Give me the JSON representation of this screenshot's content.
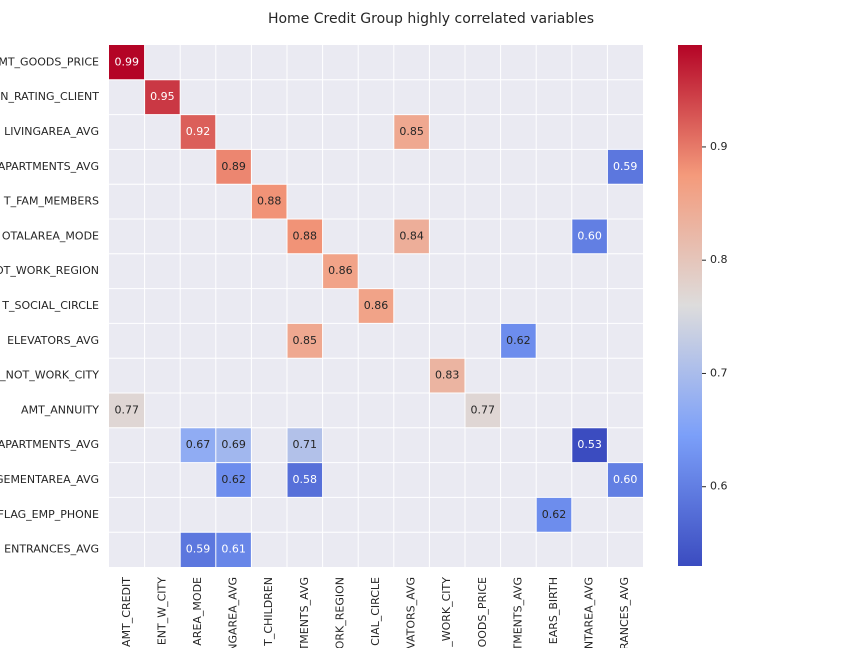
{
  "chart_data": {
    "type": "heatmap",
    "title": "Home Credit Group highly correlated variables",
    "rows": [
      "MT_GOODS_PRICE",
      "N_RATING_CLIENT",
      "LIVINGAREA_AVG",
      "APARTMENTS_AVG",
      "T_FAM_MEMBERS",
      "OTALAREA_MODE",
      "OT_WORK_REGION",
      "T_SOCIAL_CIRCLE",
      "ELEVATORS_AVG",
      "_NOT_WORK_CITY",
      "AMT_ANNUITY",
      "APARTMENTS_AVG",
      "GEMENTAREA_AVG",
      "FLAG_EMP_PHONE",
      "ENTRANCES_AVG"
    ],
    "columns": [
      "AMT_CREDIT",
      "ENT_W_CITY",
      "AREA_MODE",
      "INGAREA_AVG",
      "T_CHILDREN",
      "TMENTS_AVG",
      "ORK_REGION",
      "CIAL_CIRCLE",
      "VATORS_AVG",
      "_WORK_CITY",
      "GOODS_PRICE",
      "TMENTS_AVG",
      "EARS_BIRTH",
      "NTAREA_AVG",
      "RANCES_AVG"
    ],
    "values": [
      [
        0.99,
        null,
        null,
        null,
        null,
        null,
        null,
        null,
        null,
        null,
        null,
        null,
        null,
        null,
        null
      ],
      [
        null,
        0.95,
        null,
        null,
        null,
        null,
        null,
        null,
        null,
        null,
        null,
        null,
        null,
        null,
        null
      ],
      [
        null,
        null,
        0.92,
        null,
        null,
        null,
        null,
        null,
        0.85,
        null,
        null,
        null,
        null,
        null,
        null
      ],
      [
        null,
        null,
        null,
        0.89,
        null,
        null,
        null,
        null,
        null,
        null,
        null,
        null,
        null,
        null,
        0.59
      ],
      [
        null,
        null,
        null,
        null,
        0.88,
        null,
        null,
        null,
        null,
        null,
        null,
        null,
        null,
        null,
        null
      ],
      [
        null,
        null,
        null,
        null,
        null,
        0.88,
        null,
        null,
        0.84,
        null,
        null,
        null,
        null,
        0.6,
        null
      ],
      [
        null,
        null,
        null,
        null,
        null,
        null,
        0.86,
        null,
        null,
        null,
        null,
        null,
        null,
        null,
        null
      ],
      [
        null,
        null,
        null,
        null,
        null,
        null,
        null,
        0.86,
        null,
        null,
        null,
        null,
        null,
        null,
        null
      ],
      [
        null,
        null,
        null,
        null,
        null,
        0.85,
        null,
        null,
        null,
        null,
        null,
        0.62,
        null,
        null,
        null
      ],
      [
        null,
        null,
        null,
        null,
        null,
        null,
        null,
        null,
        null,
        0.83,
        null,
        null,
        null,
        null,
        null
      ],
      [
        0.77,
        null,
        null,
        null,
        null,
        null,
        null,
        null,
        null,
        null,
        0.77,
        null,
        null,
        null,
        null
      ],
      [
        null,
        null,
        0.67,
        0.69,
        null,
        0.71,
        null,
        null,
        null,
        null,
        null,
        null,
        null,
        0.53,
        null
      ],
      [
        null,
        null,
        null,
        0.62,
        null,
        0.58,
        null,
        null,
        null,
        null,
        null,
        null,
        null,
        null,
        0.6
      ],
      [
        null,
        null,
        null,
        null,
        null,
        null,
        null,
        null,
        null,
        null,
        null,
        null,
        0.62,
        null,
        null
      ],
      [
        null,
        null,
        0.59,
        0.61,
        null,
        null,
        null,
        null,
        null,
        null,
        null,
        null,
        null,
        null,
        null
      ]
    ],
    "value_labels": [
      [
        "0.99",
        null,
        null,
        null,
        null,
        null,
        null,
        null,
        null,
        null,
        null,
        null,
        null,
        null,
        null
      ],
      [
        null,
        "0.95",
        null,
        null,
        null,
        null,
        null,
        null,
        null,
        null,
        null,
        null,
        null,
        null,
        null
      ],
      [
        null,
        null,
        "0.92",
        null,
        null,
        null,
        null,
        null,
        "0.85",
        null,
        null,
        null,
        null,
        null,
        null
      ],
      [
        null,
        null,
        null,
        "0.89",
        null,
        null,
        null,
        null,
        null,
        null,
        null,
        null,
        null,
        null,
        "0.59"
      ],
      [
        null,
        null,
        null,
        null,
        "0.88",
        null,
        null,
        null,
        null,
        null,
        null,
        null,
        null,
        null,
        null
      ],
      [
        null,
        null,
        null,
        null,
        null,
        "0.88",
        null,
        null,
        "0.84",
        null,
        null,
        null,
        null,
        "0.60",
        null
      ],
      [
        null,
        null,
        null,
        null,
        null,
        null,
        "0.86",
        null,
        null,
        null,
        null,
        null,
        null,
        null,
        null
      ],
      [
        null,
        null,
        null,
        null,
        null,
        null,
        null,
        "0.86",
        null,
        null,
        null,
        null,
        null,
        null,
        null
      ],
      [
        null,
        null,
        null,
        null,
        null,
        "0.85",
        null,
        null,
        null,
        null,
        null,
        "0.62",
        null,
        null,
        null
      ],
      [
        null,
        null,
        null,
        null,
        null,
        null,
        null,
        null,
        null,
        "0.83",
        null,
        null,
        null,
        null,
        null
      ],
      [
        "0.77",
        null,
        null,
        null,
        null,
        null,
        null,
        null,
        null,
        null,
        "0.77",
        null,
        null,
        null,
        null
      ],
      [
        null,
        null,
        "0.67",
        "0.69",
        null,
        "0.71",
        null,
        null,
        null,
        null,
        null,
        null,
        null,
        "0.53",
        null
      ],
      [
        null,
        null,
        null,
        "0.62",
        null,
        "0.58",
        null,
        null,
        null,
        null,
        null,
        null,
        null,
        null,
        "0.60"
      ],
      [
        null,
        null,
        null,
        null,
        null,
        null,
        null,
        null,
        null,
        null,
        null,
        null,
        "0.62",
        null,
        null
      ],
      [
        null,
        null,
        "0.59",
        "0.61",
        null,
        null,
        null,
        null,
        null,
        null,
        null,
        null,
        null,
        null,
        null
      ]
    ],
    "colormap": "coolwarm",
    "clim": [
      0.53,
      0.99
    ],
    "colorbar_ticks": [
      0.6,
      0.7,
      0.8,
      0.9
    ]
  }
}
